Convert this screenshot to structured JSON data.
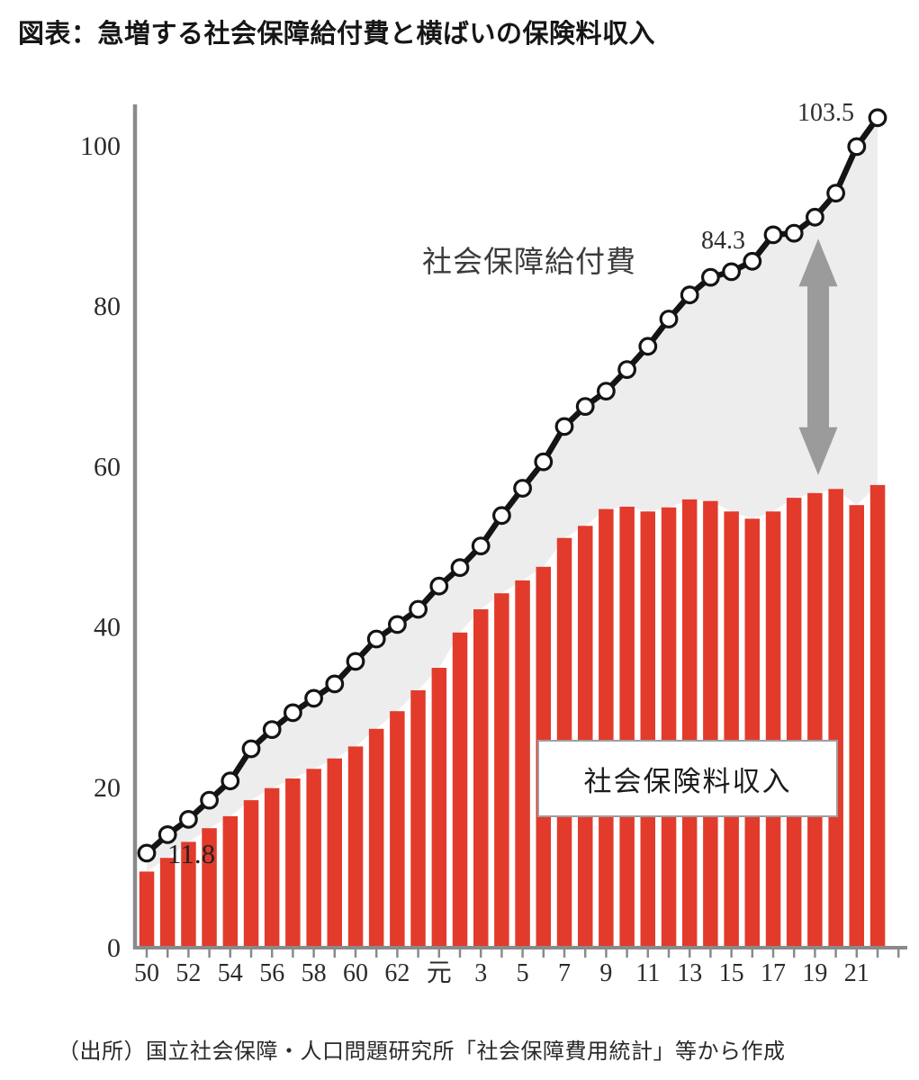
{
  "title": "図表：急増する社会保障給付費と横ばいの保険料収入",
  "source": "（出所）国立社会保障・人口問題研究所「社会保障費用統計」等から作成",
  "series_labels": {
    "line": "社会保障給付費",
    "bar": "社会保険料収入"
  },
  "annotations": {
    "first": "11.8",
    "mid": "84.3",
    "last": "103.5"
  },
  "colors": {
    "bar": "#e23b2c",
    "line": "#141414",
    "marker_fill": "#ffffff",
    "area_fill": "#ededed",
    "axis": "#8a8a8a",
    "arrow": "#9b9b9b",
    "tick_text": "#2b2b2b"
  },
  "chart_data": {
    "type": "combo",
    "n_points": 36,
    "x_tick_labels": [
      "50",
      "52",
      "54",
      "56",
      "58",
      "60",
      "62",
      "元",
      "3",
      "5",
      "7",
      "9",
      "11",
      "13",
      "15",
      "17",
      "19",
      "21"
    ],
    "x_tick_every": 2,
    "y_ticks": [
      0,
      20,
      40,
      60,
      80,
      100
    ],
    "ylim": [
      0,
      105
    ],
    "grid": false,
    "legend_position": "inside-plot-text-labels",
    "series": [
      {
        "name": "社会保障給付費",
        "type": "line",
        "marker": "circle",
        "values": [
          11.8,
          14.1,
          16.0,
          18.4,
          20.8,
          24.8,
          27.2,
          29.3,
          31.1,
          32.9,
          35.7,
          38.5,
          40.3,
          42.2,
          45.1,
          47.4,
          50.1,
          53.9,
          57.3,
          60.6,
          65.0,
          67.5,
          69.4,
          72.1,
          75.0,
          78.4,
          81.4,
          83.6,
          84.3,
          85.6,
          88.9,
          89.1,
          91.1,
          94.1,
          99.9,
          103.5
        ]
      },
      {
        "name": "社会保険料収入",
        "type": "bar",
        "values": [
          9.5,
          11.2,
          13.2,
          14.9,
          16.4,
          18.4,
          19.9,
          21.1,
          22.3,
          23.6,
          25.1,
          27.3,
          29.5,
          32.1,
          34.9,
          39.3,
          42.2,
          44.2,
          45.8,
          47.5,
          51.1,
          52.6,
          54.7,
          55.0,
          54.4,
          54.9,
          55.9,
          55.7,
          54.4,
          53.5,
          54.4,
          56.1,
          56.7,
          57.2,
          55.2,
          57.7
        ]
      }
    ],
    "point_annotations": [
      {
        "text": "11.8",
        "series": "社会保障給付費",
        "point_index": 0
      },
      {
        "text": "84.3",
        "series": "社会保障給付費",
        "point_index": 28
      },
      {
        "text": "103.5",
        "series": "社会保障給付費",
        "point_index": 35
      }
    ],
    "gap_arrow": {
      "point_index": 32,
      "style": "double-headed-vertical"
    }
  }
}
